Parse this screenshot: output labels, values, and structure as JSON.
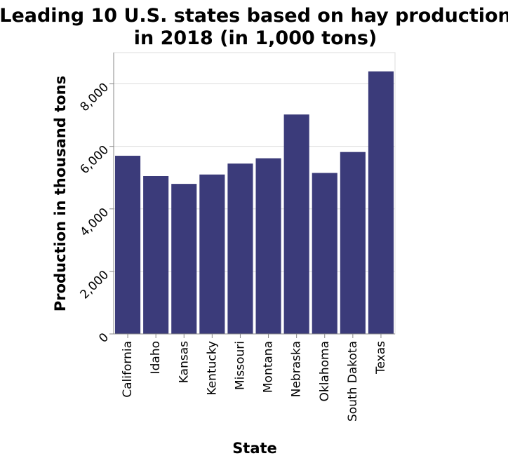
{
  "chart_data": {
    "type": "bar",
    "title": [
      "Leading 10 U.S. states based on hay production",
      "in 2018 (in 1,000 tons)"
    ],
    "xlabel": "State",
    "ylabel": "Production in thousand tons",
    "categories": [
      "California",
      "Idaho",
      "Kansas",
      "Kentucky",
      "Missouri",
      "Montana",
      "Nebraska",
      "Oklahoma",
      "South Dakota",
      "Texas"
    ],
    "values": [
      5700,
      5050,
      4800,
      5100,
      5450,
      5620,
      7020,
      5150,
      5820,
      8400
    ],
    "ylim": [
      0,
      9000
    ],
    "yticks": [
      0,
      2000,
      4000,
      6000,
      8000
    ],
    "ytick_labels": [
      "0",
      "2,000",
      "4,000",
      "6,000",
      "8,000"
    ],
    "grid": true,
    "bar_color": "#3b3b7a",
    "grid_color": "#dddddd",
    "axis_color": "#888888"
  }
}
